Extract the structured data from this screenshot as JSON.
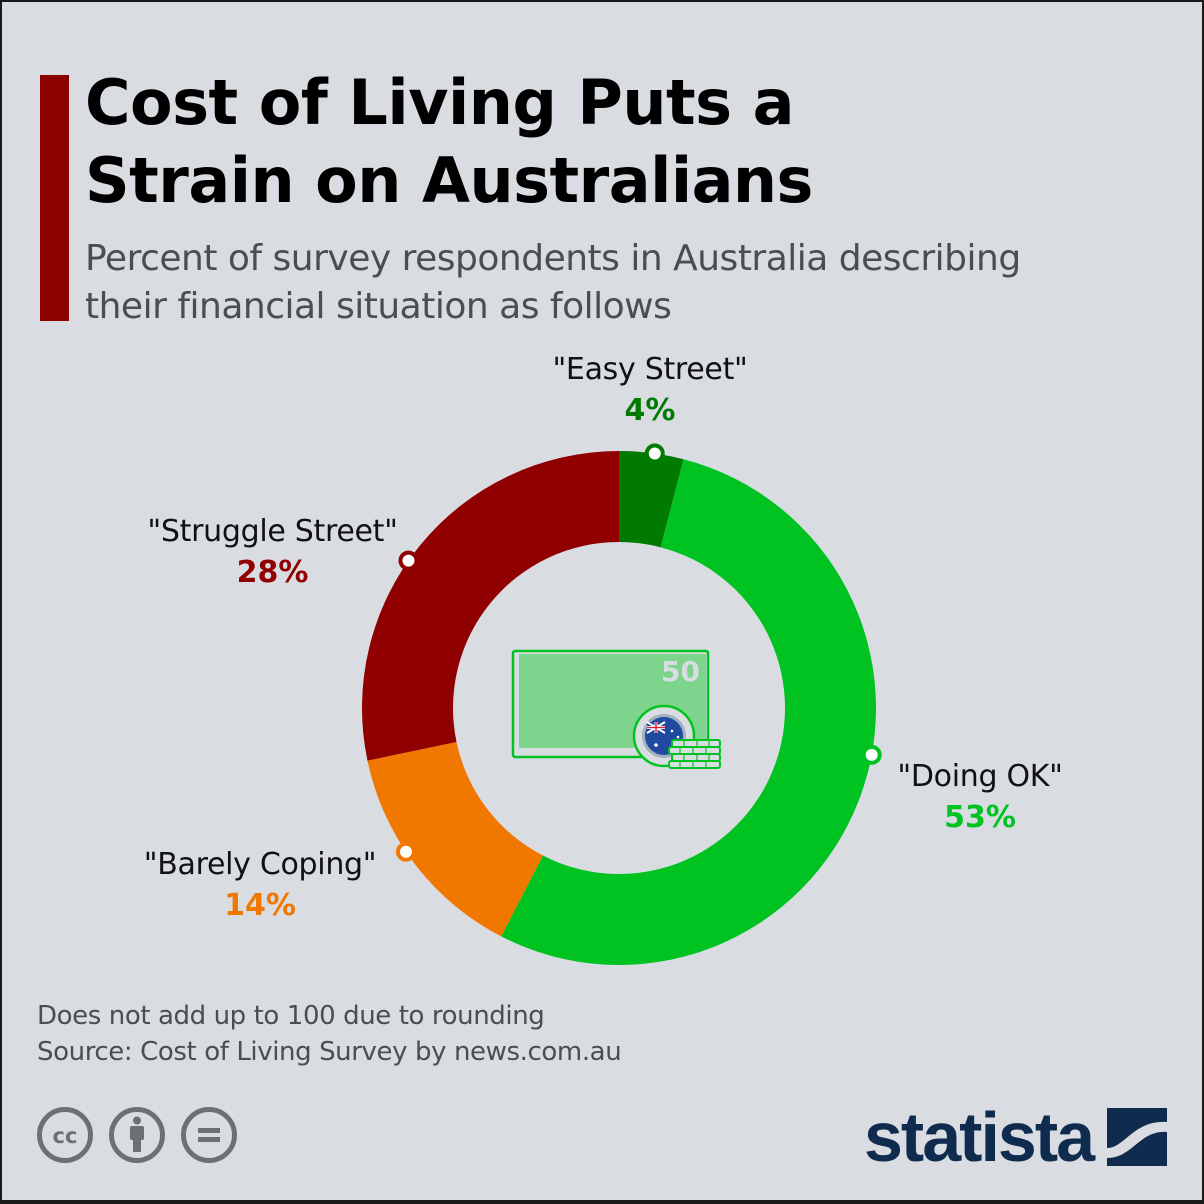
{
  "header": {
    "title_line1": "Cost of Living Puts a",
    "title_line2": "Strain on Australians",
    "subtitle_line1": "Percent of survey respondents in Australia describing",
    "subtitle_line2": "their financial situation as follows"
  },
  "labels": {
    "easy_street": {
      "name": "\"Easy Street\"",
      "pct": "4%"
    },
    "doing_ok": {
      "name": "\"Doing OK\"",
      "pct": "53%"
    },
    "barely_coping": {
      "name": "\"Barely Coping\"",
      "pct": "14%"
    },
    "struggle_street": {
      "name": "\"Struggle Street\"",
      "pct": "28%"
    }
  },
  "center_icon": {
    "type": "banknote-with-australian-coin",
    "note_value": "50"
  },
  "footer": {
    "note": "Does not add up to 100 due to rounding",
    "source": "Source: Cost of Living Survey by news.com.au",
    "license_icons": [
      "cc-icon",
      "attribution-icon",
      "no-derivatives-icon"
    ],
    "brand": "statista"
  },
  "colors": {
    "background": "#d9dde2",
    "accent": "#8c0000",
    "easy_street": "#007a00",
    "doing_ok": "#00c322",
    "barely_coping": "#f07800",
    "struggle_street": "#900000",
    "brand": "#0f2b4d"
  },
  "chart_data": {
    "type": "pie",
    "variant": "donut",
    "title": "Cost of Living Puts a Strain on Australians",
    "subtitle": "Percent of survey respondents in Australia describing their financial situation as follows",
    "categories": [
      "\"Easy Street\"",
      "\"Doing OK\"",
      "\"Barely Coping\"",
      "\"Struggle Street\""
    ],
    "values": [
      4,
      53,
      14,
      28
    ],
    "unit": "%",
    "colors": [
      "#007a00",
      "#00c322",
      "#f07800",
      "#900000"
    ],
    "start_angle": "12 o'clock, clockwise",
    "annotations": [
      "Does not add up to 100 due to rounding"
    ],
    "source": "Cost of Living Survey by news.com.au",
    "legend": "none (direct labels)"
  }
}
